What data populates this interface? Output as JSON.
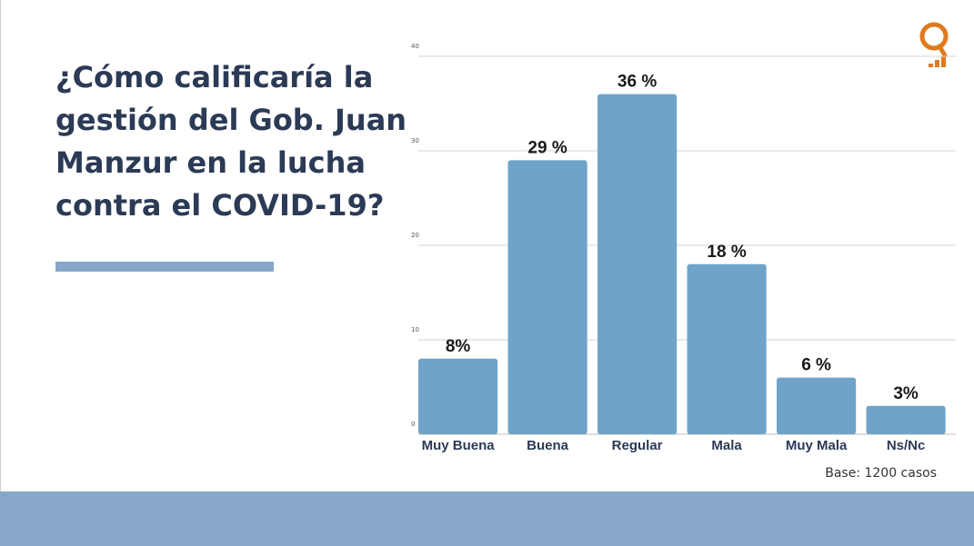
{
  "title": "¿Cómo calificaría la\ngestión del Gob. Juan\nManzur en la lucha\ncontra el COVID-19?",
  "base_note": "Base:  1200 casos",
  "logo": {
    "icon": "q-bars-logo-icon",
    "color": "#e07a1f"
  },
  "colors": {
    "bar": "#6fa4c8",
    "title": "#2b3a55",
    "accent_band": "#86a7c9"
  },
  "chart_data": {
    "type": "bar",
    "categories": [
      "Muy Buena",
      "Buena",
      "Regular",
      "Mala",
      "Muy Mala",
      "Ns/Nc"
    ],
    "values": [
      8,
      29,
      36,
      18,
      6,
      3
    ],
    "data_labels": [
      "8%",
      "29 %",
      "36 %",
      "18 %",
      "6 %",
      "3%"
    ],
    "ylim": [
      0,
      40
    ],
    "yticks": [
      "0",
      "10",
      "20",
      "30",
      "40"
    ],
    "grid": true,
    "title": "",
    "xlabel": "",
    "ylabel": ""
  }
}
